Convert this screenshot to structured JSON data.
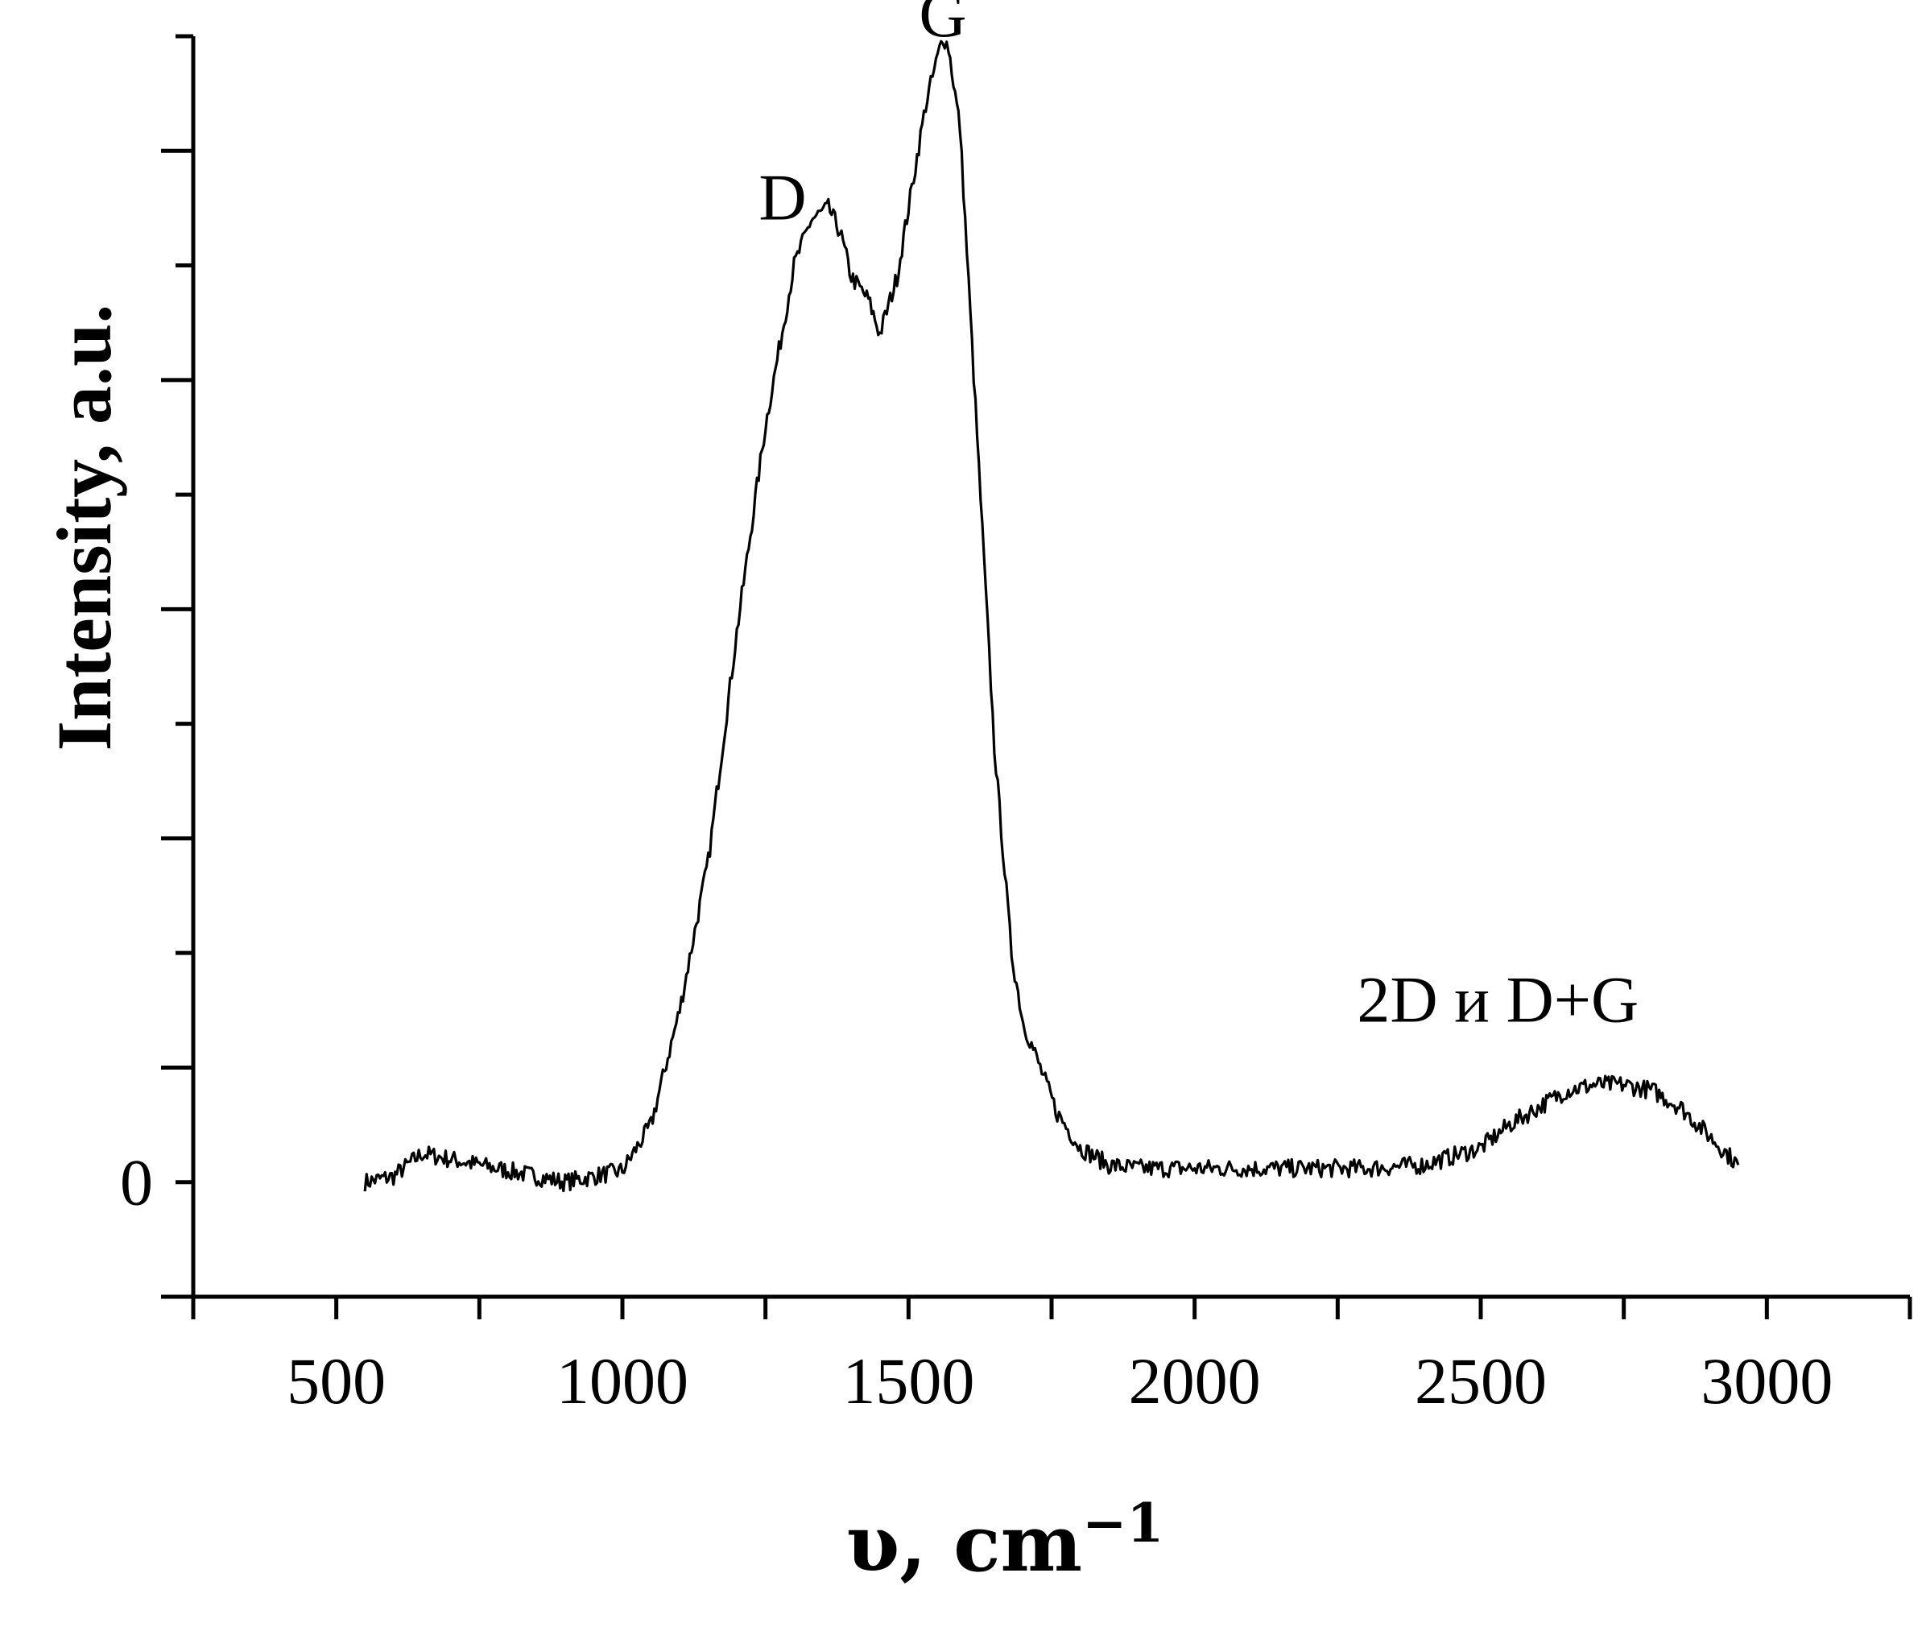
{
  "chart_data": {
    "type": "line",
    "title": "",
    "xlabel": "υ, cm",
    "xlabel_sup": "−1",
    "ylabel": "Intensity, a.u.",
    "xlim": [
      250,
      3250
    ],
    "ylim": [
      -100,
      1000
    ],
    "x_ticks": [
      500,
      1000,
      1500,
      2000,
      2500,
      3000
    ],
    "x_tick_labels": [
      "500",
      "1000",
      "1500",
      "2000",
      "2500",
      "3000"
    ],
    "y_tick_labels": [
      {
        "value": 0,
        "label": "0"
      }
    ],
    "grid": false,
    "legend": "none",
    "annotations": [
      {
        "text": "D",
        "x": 1280,
        "y": 840
      },
      {
        "text": "G",
        "x": 1560,
        "y": 1000
      },
      {
        "text": "2D и D+G",
        "x": 2530,
        "y": 140
      }
    ],
    "series": [
      {
        "color": "#000000",
        "noise": 8,
        "x": [
          550,
          600,
          650,
          700,
          750,
          800,
          850,
          900,
          950,
          1000,
          1050,
          1100,
          1150,
          1200,
          1250,
          1300,
          1330,
          1360,
          1380,
          1400,
          1430,
          1450,
          1480,
          1500,
          1530,
          1560,
          1570,
          1590,
          1620,
          1650,
          1680,
          1700,
          1730,
          1760,
          1800,
          1850,
          1900,
          2000,
          2100,
          2200,
          2300,
          2400,
          2500,
          2550,
          2600,
          2650,
          2700,
          2750,
          2800,
          2850,
          2900,
          2950
        ],
        "y": [
          0,
          5,
          25,
          20,
          15,
          10,
          5,
          0,
          5,
          10,
          50,
          150,
          280,
          480,
          660,
          800,
          840,
          850,
          830,
          790,
          770,
          740,
          790,
          850,
          940,
          1000,
          990,
          920,
          650,
          380,
          200,
          140,
          100,
          60,
          30,
          15,
          12,
          12,
          12,
          12,
          12,
          15,
          30,
          50,
          65,
          80,
          85,
          85,
          80,
          65,
          40,
          15
        ]
      }
    ]
  }
}
